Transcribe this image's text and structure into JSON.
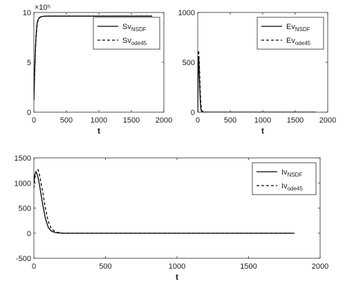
{
  "chart_data": [
    {
      "type": "line",
      "xlabel": "t",
      "ylabel": "",
      "xlim": [
        0,
        2000
      ],
      "ylim": [
        0,
        10
      ],
      "y_exponent_label": "×10⁵",
      "x_ticks": [
        0,
        500,
        1000,
        1500,
        2000
      ],
      "y_ticks": [
        0,
        5,
        10
      ],
      "legend": "top-right",
      "grid": false,
      "series": [
        {
          "name_main": "Sv",
          "name_sub": "NSDF",
          "style": "solid",
          "x": [
            0,
            10,
            20,
            30,
            40,
            50,
            60,
            80,
            100,
            125,
            150,
            200,
            300,
            500,
            1000,
            1500,
            1820
          ],
          "y": [
            1.2,
            3.6,
            5.8,
            7.3,
            8.3,
            8.9,
            9.2,
            9.45,
            9.55,
            9.6,
            9.62,
            9.63,
            9.63,
            9.63,
            9.63,
            9.63,
            9.63
          ]
        },
        {
          "name_main": "Sv",
          "name_sub": "ode45",
          "style": "dashed",
          "x": [
            0,
            10,
            20,
            30,
            40,
            50,
            60,
            80,
            100,
            125,
            150,
            200,
            300,
            500,
            1000,
            1500,
            1820
          ],
          "y": [
            1.2,
            3.4,
            5.5,
            7.0,
            8.0,
            8.7,
            9.1,
            9.4,
            9.53,
            9.6,
            9.62,
            9.63,
            9.63,
            9.63,
            9.63,
            9.63,
            9.63
          ]
        }
      ]
    },
    {
      "type": "line",
      "xlabel": "t",
      "ylabel": "",
      "xlim": [
        0,
        2000
      ],
      "ylim": [
        0,
        1000
      ],
      "x_ticks": [
        0,
        500,
        1000,
        1500,
        2000
      ],
      "y_ticks": [
        0,
        500,
        1000
      ],
      "legend": "top-right",
      "grid": false,
      "series": [
        {
          "name_main": "Ev",
          "name_sub": "NSDF",
          "style": "solid",
          "x": [
            0,
            5,
            10,
            15,
            20,
            30,
            40,
            50,
            60,
            80,
            100,
            150,
            200,
            500,
            1000,
            1500,
            1820
          ],
          "y": [
            0,
            300,
            530,
            560,
            480,
            250,
            90,
            25,
            8,
            2,
            1,
            0,
            0,
            0,
            0,
            0,
            0
          ]
        },
        {
          "name_main": "Ev",
          "name_sub": "ode45",
          "style": "dashed",
          "x": [
            0,
            5,
            10,
            15,
            20,
            30,
            40,
            50,
            60,
            80,
            100,
            150,
            200,
            500,
            1000,
            1500,
            1820
          ],
          "y": [
            0,
            350,
            600,
            620,
            560,
            380,
            180,
            70,
            20,
            4,
            1,
            0,
            0,
            0,
            0,
            0,
            0
          ]
        }
      ]
    },
    {
      "type": "line",
      "xlabel": "t",
      "ylabel": "",
      "xlim": [
        0,
        2000
      ],
      "ylim": [
        -500,
        1500
      ],
      "x_ticks": [
        0,
        500,
        1000,
        1500,
        2000
      ],
      "y_ticks": [
        -500,
        0,
        500,
        1000,
        1500
      ],
      "legend": "top-right",
      "grid": false,
      "series": [
        {
          "name_main": "Iv",
          "name_sub": "NSDF",
          "style": "solid",
          "x": [
            0,
            5,
            10,
            15,
            20,
            30,
            40,
            60,
            80,
            100,
            120,
            150,
            200,
            300,
            500,
            1000,
            1500,
            1820
          ],
          "y": [
            1000,
            1150,
            1190,
            1210,
            1200,
            1100,
            950,
            600,
            300,
            120,
            45,
            10,
            0,
            0,
            0,
            0,
            0,
            0
          ]
        },
        {
          "name_main": "Iv",
          "name_sub": "ode45",
          "style": "dashed",
          "x": [
            0,
            5,
            10,
            15,
            20,
            30,
            40,
            60,
            80,
            100,
            120,
            150,
            200,
            300,
            500,
            1000,
            1500,
            1820
          ],
          "y": [
            900,
            1050,
            1150,
            1230,
            1270,
            1260,
            1150,
            850,
            500,
            240,
            100,
            25,
            2,
            0,
            0,
            0,
            0,
            0
          ]
        }
      ]
    }
  ]
}
